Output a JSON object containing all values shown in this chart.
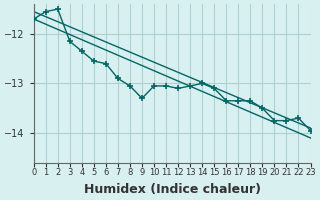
{
  "title": "",
  "xlabel": "Humidex (Indice chaleur)",
  "ylabel": "",
  "bg_color": "#d8f0f0",
  "line_color": "#006666",
  "grid_color": "#b0d0d0",
  "xlim": [
    0,
    23
  ],
  "ylim": [
    -14.6,
    -11.4
  ],
  "yticks": [
    -14,
    -13,
    -12
  ],
  "xticks": [
    0,
    1,
    2,
    3,
    4,
    5,
    6,
    7,
    8,
    9,
    10,
    11,
    12,
    13,
    14,
    15,
    16,
    17,
    18,
    19,
    20,
    21,
    22,
    23
  ],
  "xtick_labels": [
    "0",
    "1",
    "2",
    "3",
    "4",
    "5",
    "6",
    "7",
    "8",
    "9",
    "10",
    "11",
    "12",
    "13",
    "14",
    "15",
    "16",
    "17",
    "18",
    "19",
    "20",
    "21",
    "22",
    "23"
  ],
  "data_x": [
    0,
    1,
    2,
    3,
    4,
    5,
    6,
    7,
    8,
    9,
    10,
    11,
    12,
    13,
    14,
    15,
    16,
    17,
    18,
    19,
    20,
    21,
    22,
    23
  ],
  "data_y_main": [
    -11.7,
    -11.55,
    -11.5,
    -12.15,
    -12.35,
    -12.55,
    -12.6,
    -12.9,
    -13.05,
    -13.3,
    -13.05,
    -13.05,
    -13.1,
    -13.05,
    -13.0,
    -13.1,
    -13.35,
    -13.35,
    -13.35,
    -13.5,
    -13.75,
    -13.75,
    -13.7,
    -13.95
  ],
  "line1_x": [
    0,
    23
  ],
  "line1_y": [
    -11.7,
    -14.1
  ],
  "line2_x": [
    0,
    23
  ],
  "line2_y": [
    -11.55,
    -13.9
  ],
  "xlabel_fontsize": 9,
  "tick_fontsize": 7
}
